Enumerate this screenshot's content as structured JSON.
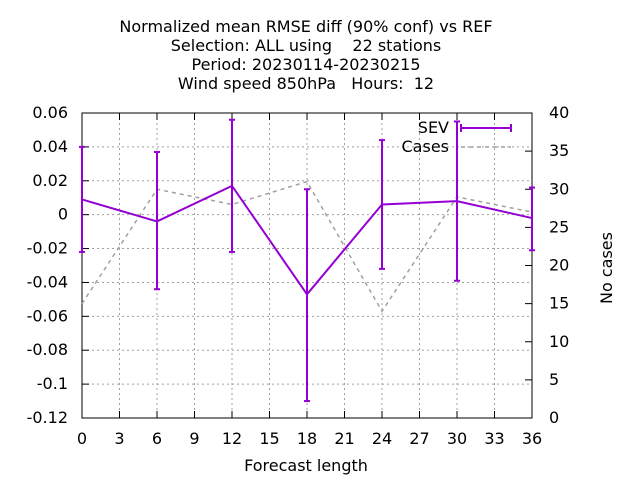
{
  "chart_data": {
    "type": "line",
    "title_lines": [
      "Normalized mean RMSE diff (90% conf) vs REF",
      "Selection: ALL using    22 stations",
      "Period: 20230114-20230215",
      "Wind speed 850hPa   Hours:  12"
    ],
    "xlabel": "Forecast length",
    "ylabel": "",
    "y2label": "No cases",
    "xlim": [
      0,
      36
    ],
    "ylim": [
      -0.12,
      0.06
    ],
    "y2lim": [
      0,
      40
    ],
    "x_ticks": [
      0,
      3,
      6,
      9,
      12,
      15,
      18,
      21,
      24,
      27,
      30,
      33,
      36
    ],
    "y_ticks": [
      0.06,
      0.04,
      0.02,
      0,
      -0.02,
      -0.04,
      -0.06,
      -0.08,
      -0.1,
      -0.12
    ],
    "y_tick_labels": [
      "0.06",
      "0.04",
      "0.02",
      "0",
      "-0.02",
      "-0.04",
      "-0.06",
      "-0.08",
      "-0.1",
      "-0.12"
    ],
    "y2_ticks": [
      40,
      35,
      30,
      25,
      20,
      15,
      10,
      5,
      0
    ],
    "y2_tick_labels": [
      "40",
      "35",
      "30",
      "25",
      "20",
      "15",
      "10",
      "5",
      "0"
    ],
    "grid": true,
    "legend_position": "top-right",
    "series": [
      {
        "name": "SEV",
        "axis": "left",
        "style": "line-errorbars",
        "color": "#9400d3",
        "x": [
          0,
          6,
          12,
          18,
          24,
          30,
          36
        ],
        "y": [
          0.009,
          -0.004,
          0.017,
          -0.047,
          0.006,
          0.008,
          -0.002
        ],
        "y_low": [
          -0.022,
          -0.044,
          -0.022,
          -0.11,
          -0.032,
          -0.039,
          -0.021
        ],
        "y_high": [
          0.04,
          0.037,
          0.056,
          0.015,
          0.044,
          0.055,
          0.016
        ]
      },
      {
        "name": "Cases",
        "axis": "right",
        "style": "dashed",
        "color": "#a0a0a0",
        "x": [
          0,
          6,
          12,
          18,
          24,
          30,
          36
        ],
        "y": [
          15,
          30,
          28,
          31,
          14,
          29,
          27
        ]
      }
    ]
  }
}
